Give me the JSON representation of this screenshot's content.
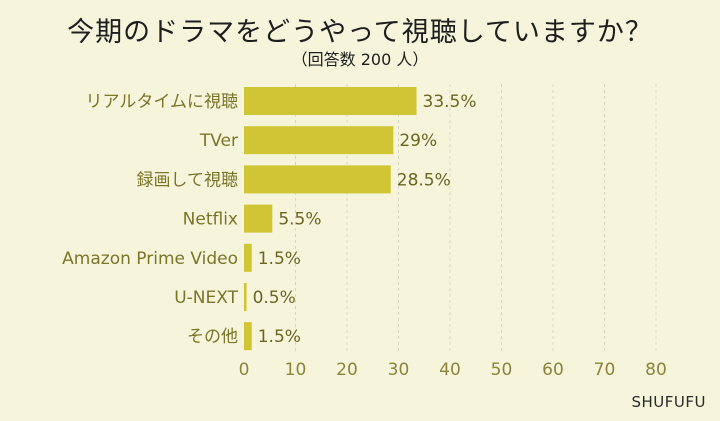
{
  "header": {
    "title": "今期のドラマをどうやって視聴していますか？",
    "subtitle": "（回答数 200 人）"
  },
  "footer": {
    "source": "SHUFUFU"
  },
  "colors": {
    "background": "#f6f5dc",
    "bar": "#cfc535",
    "category_text": "#7a7528",
    "value_text": "#6b6522",
    "tick_text": "#8a843a",
    "grid": "#d9d7c4"
  },
  "chart_data": {
    "type": "bar",
    "orientation": "horizontal",
    "categories": [
      "リアルタイムに視聴",
      "TVer",
      "録画して視聴",
      "Netflix",
      "Amazon Prime Video",
      "U-NEXT",
      "その他"
    ],
    "values": [
      33.5,
      29,
      28.5,
      5.5,
      1.5,
      0.5,
      1.5
    ],
    "value_labels": [
      "33.5%",
      "29%",
      "28.5%",
      "5.5%",
      "1.5%",
      "0.5%",
      "1.5%"
    ],
    "xlim": [
      0,
      80
    ],
    "xticks": [
      "0",
      "10",
      "20",
      "30",
      "40",
      "50",
      "60",
      "70",
      "80"
    ],
    "grid": "vertical dashed"
  }
}
